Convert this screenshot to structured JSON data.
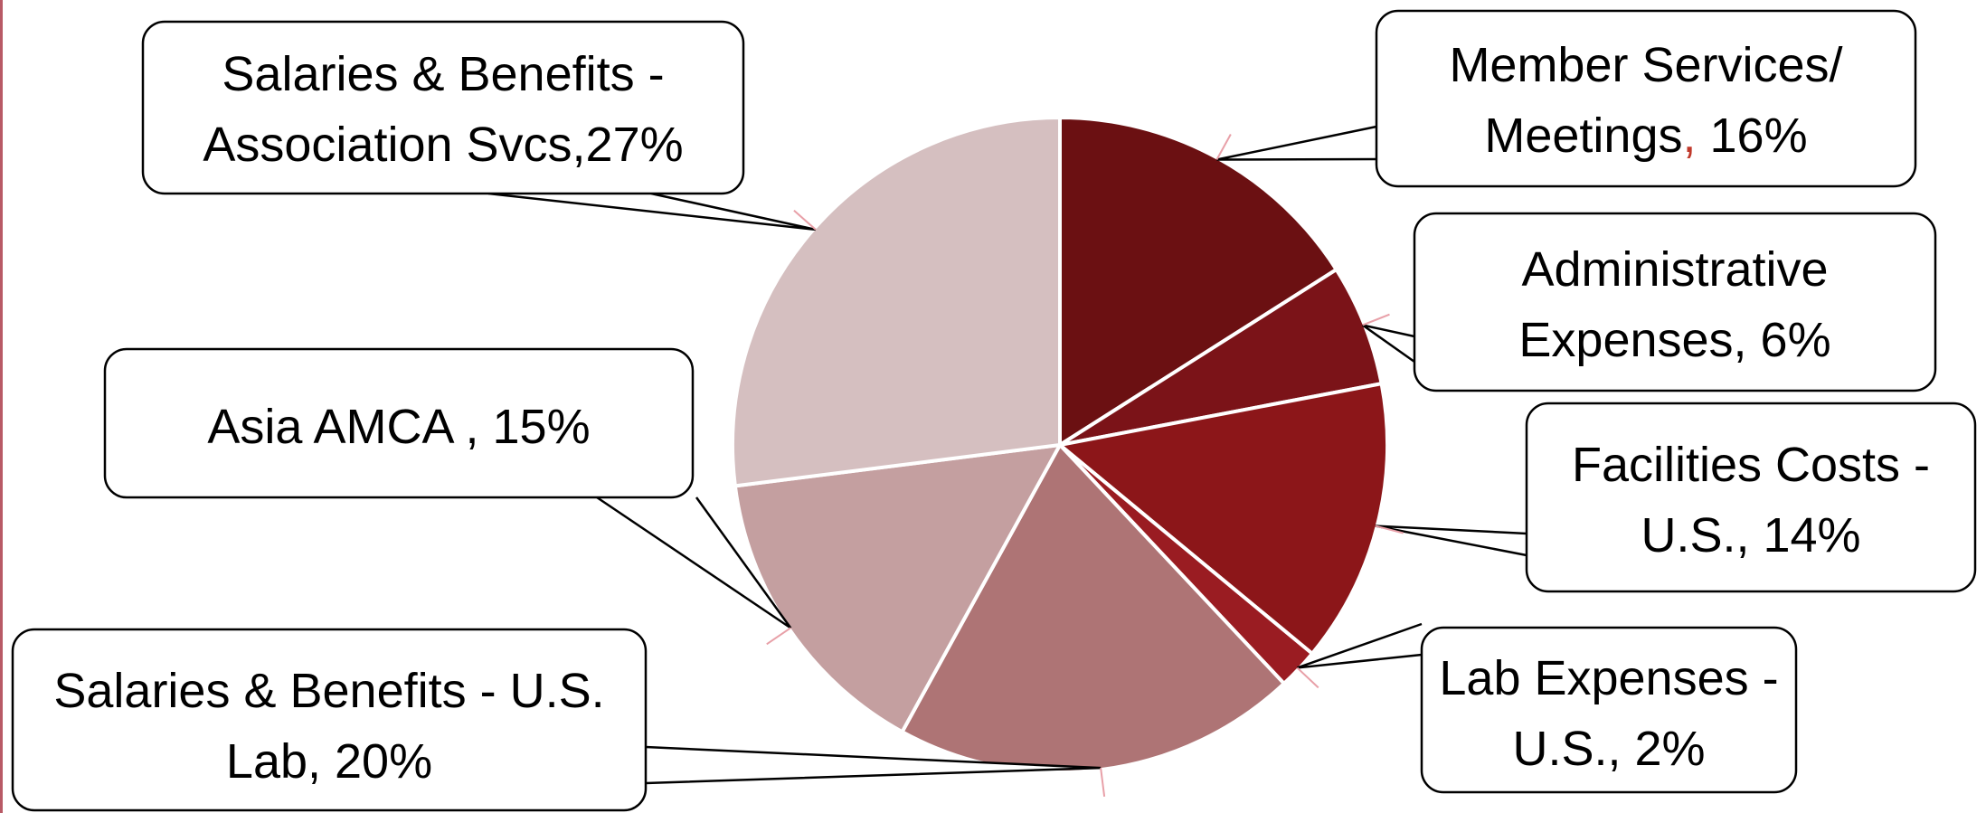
{
  "chart_data": {
    "type": "pie",
    "title": "",
    "start_angle_deg": 0,
    "direction": "clockwise",
    "slices": [
      {
        "label_line1": "Member Services/",
        "label_line2": "Meetings",
        "label_sep": ",",
        "label_pct": " 16%",
        "value": 16,
        "color": "#6b1012"
      },
      {
        "label_line1": "Administrative",
        "label_line2": "Expenses, 6%",
        "value": 6,
        "color": "#7b1318"
      },
      {
        "label_line1": "Facilities Costs -",
        "label_line2": "U.S., 14%",
        "value": 14,
        "color": "#8c1619"
      },
      {
        "label_line1": "Lab Expenses -",
        "label_line2": "U.S., 2%",
        "value": 2,
        "color": "#9a1c22"
      },
      {
        "label_line1": "Salaries & Benefits - U.S.",
        "label_line2": "Lab, 20%",
        "value": 20,
        "color": "#ae7475"
      },
      {
        "label_line1": "Asia AMCA , 15%",
        "label_line2": "",
        "value": 15,
        "color": "#c49fa0"
      },
      {
        "label_line1": "Salaries & Benefits -",
        "label_line2": "Association Svcs,27%",
        "value": 27,
        "color": "#d5bfc0"
      }
    ],
    "separator_color": "#c0392b"
  }
}
